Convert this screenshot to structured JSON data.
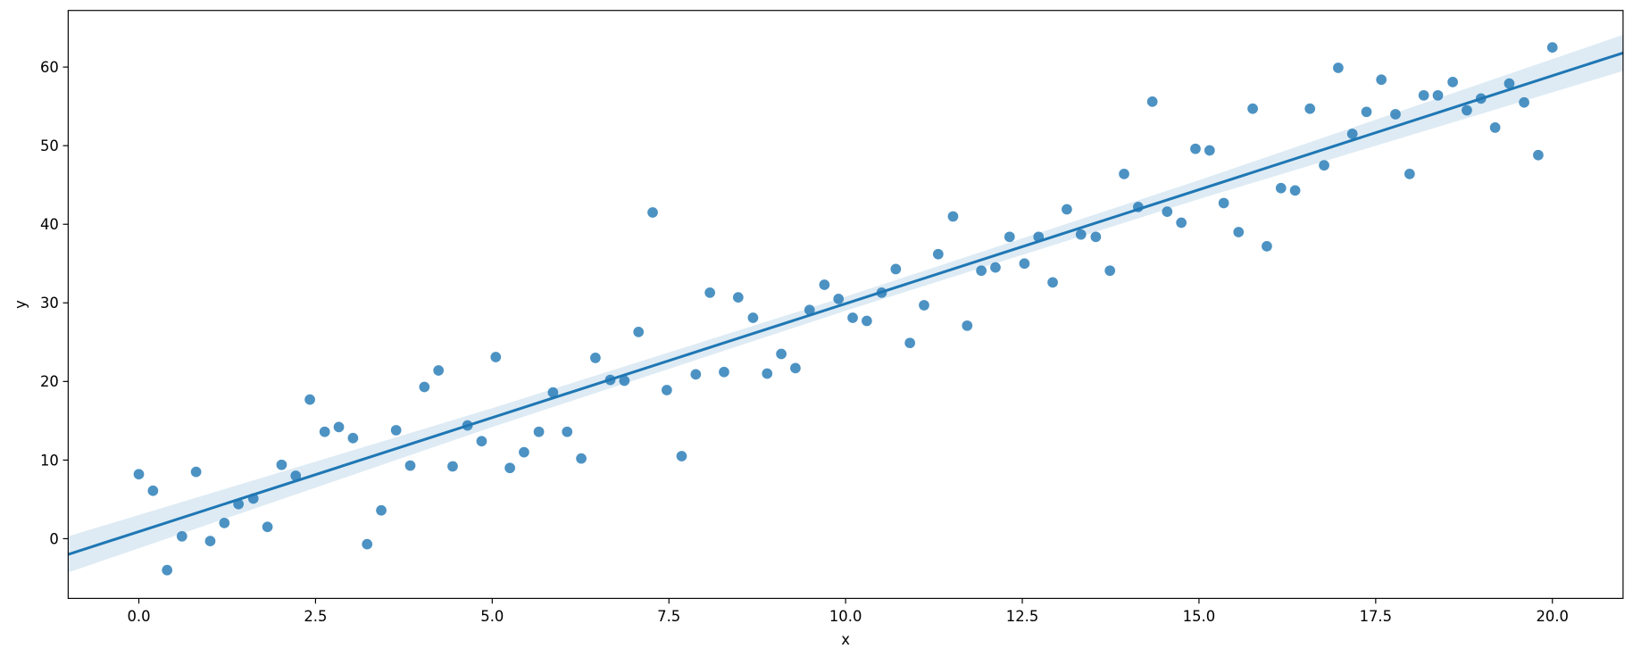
{
  "chart_data": {
    "type": "scatter",
    "xlabel": "x",
    "ylabel": "y",
    "color": "#1f77b4",
    "x": [
      0,
      0.2,
      0.4,
      0.61,
      0.81,
      1.01,
      1.21,
      1.41,
      1.62,
      1.82,
      2.02,
      2.22,
      2.42,
      2.63,
      2.83,
      3.03,
      3.23,
      3.43,
      3.64,
      3.84,
      4.04,
      4.24,
      4.44,
      4.65,
      4.85,
      5.05,
      5.25,
      5.45,
      5.66,
      5.86,
      6.06,
      6.26,
      6.46,
      6.67,
      6.87,
      7.07,
      7.27,
      7.47,
      7.68,
      7.88,
      8.08,
      8.28,
      8.48,
      8.69,
      8.89,
      9.09,
      9.29,
      9.49,
      9.7,
      9.9,
      10.1,
      10.3,
      10.51,
      10.71,
      10.91,
      11.11,
      11.31,
      11.52,
      11.72,
      11.92,
      12.12,
      12.32,
      12.53,
      12.73,
      12.93,
      13.13,
      13.33,
      13.54,
      13.74,
      13.94,
      14.14,
      14.34,
      14.55,
      14.75,
      14.95,
      15.15,
      15.35,
      15.56,
      15.76,
      15.96,
      16.16,
      16.36,
      16.57,
      16.77,
      16.97,
      17.17,
      17.37,
      17.58,
      17.78,
      17.98,
      18.18,
      18.38,
      18.59,
      18.79,
      18.99,
      19.19,
      19.39,
      19.6,
      19.8,
      20
    ],
    "values": [
      8.2,
      6.1,
      -4.0,
      0.3,
      8.5,
      -0.3,
      2.0,
      4.4,
      5.1,
      1.5,
      9.4,
      8.0,
      17.7,
      13.6,
      14.2,
      12.8,
      -0.7,
      3.6,
      13.8,
      9.3,
      19.3,
      21.4,
      9.2,
      14.4,
      12.4,
      23.1,
      9.0,
      11.0,
      13.6,
      18.6,
      13.6,
      10.2,
      23.0,
      20.2,
      20.1,
      26.3,
      41.5,
      18.9,
      10.5,
      20.9,
      31.3,
      21.2,
      30.7,
      28.1,
      21.0,
      23.5,
      21.7,
      29.1,
      32.3,
      30.5,
      28.1,
      27.7,
      31.3,
      34.3,
      24.9,
      29.7,
      36.2,
      41.0,
      27.1,
      34.1,
      34.5,
      38.4,
      35.0,
      38.4,
      32.6,
      41.9,
      38.7,
      38.4,
      34.1,
      46.4,
      42.2,
      55.6,
      41.6,
      40.2,
      49.6,
      49.4,
      42.7,
      39.0,
      54.7,
      37.2,
      44.6,
      44.3,
      54.7,
      47.5,
      59.9,
      51.5,
      54.3,
      58.4,
      54.0,
      46.4,
      56.4,
      56.4,
      58.1,
      54.5,
      56.0,
      52.3,
      57.9,
      55.5,
      48.8,
      62.5
    ],
    "fit": {
      "x": [
        -1,
        21
      ],
      "y": [
        -2.0,
        61.8
      ]
    },
    "ci": {
      "x": [
        -1,
        5,
        10,
        15,
        21
      ],
      "lower": [
        -4.3,
        14.2,
        29.0,
        43.2,
        59.5
      ],
      "upper": [
        0.3,
        16.6,
        30.8,
        45.6,
        64.1
      ]
    },
    "xlim": [
      -1,
      21
    ],
    "ylim": [
      -7.6,
      67.2
    ],
    "xticks": [
      {
        "value": 0,
        "label": "0.0"
      },
      2.5,
      {
        "value": 5,
        "label": "5.0"
      },
      7.5,
      {
        "value": 10,
        "label": "10.0"
      },
      12.5,
      {
        "value": 15,
        "label": "15.0"
      },
      17.5,
      {
        "value": 20,
        "label": "20.0"
      }
    ],
    "yticks": [
      0,
      10,
      20,
      30,
      40,
      50,
      60
    ]
  }
}
